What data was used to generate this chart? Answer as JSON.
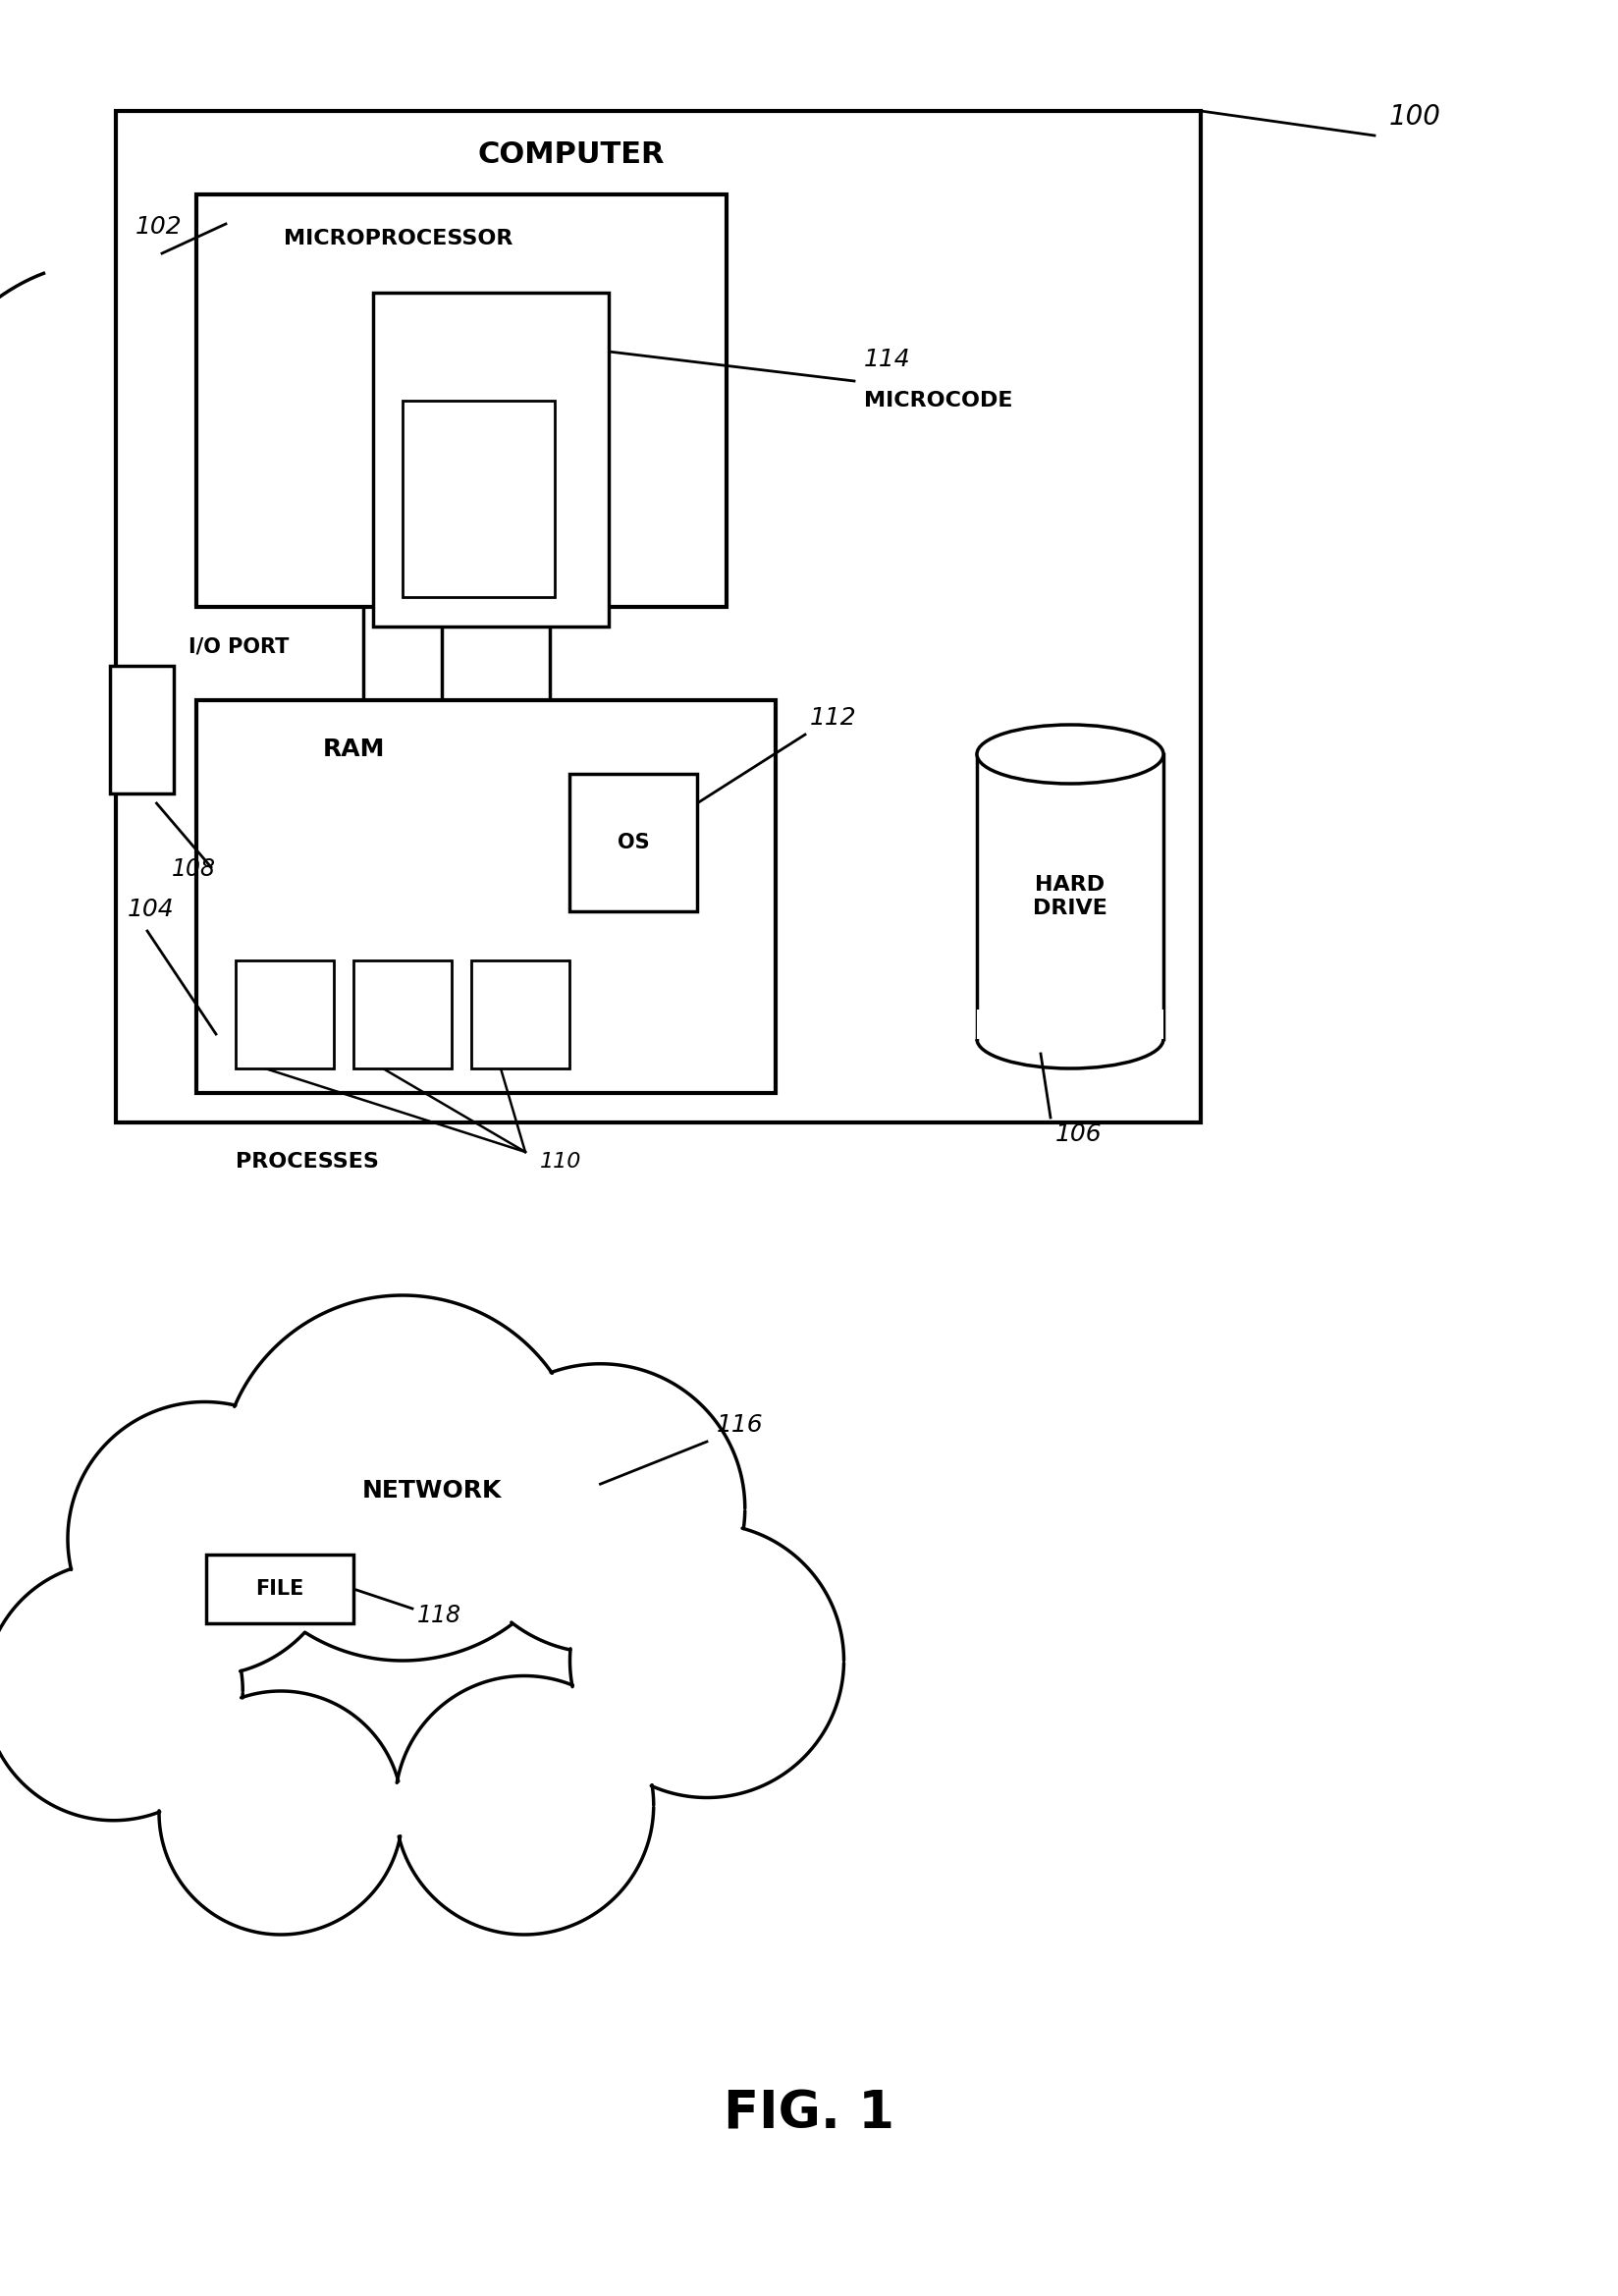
{
  "bg_color": "#ffffff",
  "line_color": "#000000",
  "fig_label": "100",
  "computer_label": "COMPUTER",
  "microprocessor_label": "MICROPROCESSOR",
  "microprocessor_ref": "102",
  "microcode_label": "MICROCODE",
  "microcode_ref": "114",
  "ram_label": "RAM",
  "ram_ref": "104",
  "os_label": "OS",
  "os_ref": "112",
  "processes_label": "PROCESSES",
  "processes_ref": "110",
  "io_label": "I/O PORT",
  "io_ref": "108",
  "hd_label": "HARD\nDRIVE",
  "hd_ref": "106",
  "network_label": "NETWORK",
  "network_ref": "116",
  "file_label": "FILE",
  "file_ref": "118",
  "fig_caption": "FIG. 1"
}
